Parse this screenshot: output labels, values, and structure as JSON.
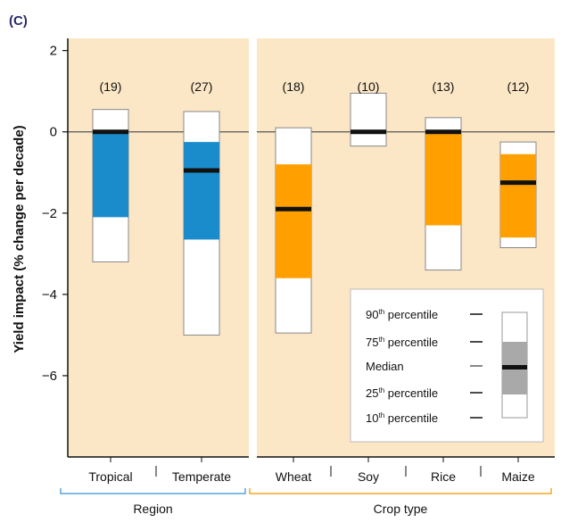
{
  "chart_data": {
    "type": "box",
    "panel_label": "(C)",
    "ylabel": "Yield impact (% change per decade)",
    "ylim": [
      -8,
      2.3
    ],
    "yticks": [
      2,
      0,
      -2,
      -4,
      -6
    ],
    "ytick_labels": [
      "2",
      "0",
      "−2",
      "−4",
      "−6"
    ],
    "zero_line": true,
    "groups": [
      {
        "name": "Region",
        "color": "#5aa5d8",
        "categories": [
          {
            "label": "Tropical",
            "count": "(19)",
            "p10": -3.2,
            "p25": -2.1,
            "median": 0.0,
            "p75": 0.0,
            "p90": 0.55
          },
          {
            "label": "Temperate",
            "count": "(27)",
            "p10": -5.0,
            "p25": -2.65,
            "median": -0.95,
            "p75": -0.25,
            "p90": 0.5
          }
        ]
      },
      {
        "name": "Crop type",
        "color": "#f5a623",
        "categories": [
          {
            "label": "Wheat",
            "count": "(18)",
            "p10": -4.95,
            "p25": -3.6,
            "median": -1.9,
            "p75": -0.8,
            "p90": 0.1
          },
          {
            "label": "Soy",
            "count": "(10)",
            "p10": -0.35,
            "p25": -0.05,
            "median": 0.0,
            "p75": 0.05,
            "p90": 0.95
          },
          {
            "label": "Rice",
            "count": "(13)",
            "p10": -3.4,
            "p25": -2.3,
            "median": 0.0,
            "p75": 0.0,
            "p90": 0.35
          },
          {
            "label": "Maize",
            "count": "(12)",
            "p10": -2.85,
            "p25": -2.6,
            "median": -1.25,
            "p75": -0.55,
            "p90": -0.25
          }
        ]
      }
    ],
    "colors": {
      "panel_bg": "#fbe6c6",
      "region_box": "#1a8ccc",
      "crop_box": "#ffa000",
      "whisker_box": "#ffffff",
      "median": "#111111",
      "legend_box": "#a9a9a9"
    },
    "legend": {
      "position": "bottom-right",
      "entries": [
        {
          "base": "90",
          "sup": "th",
          "rest": "percentile"
        },
        {
          "base": "75",
          "sup": "th",
          "rest": "percentile"
        },
        {
          "base": "Median",
          "sup": "",
          "rest": ""
        },
        {
          "base": "25",
          "sup": "th",
          "rest": "percentile"
        },
        {
          "base": "10",
          "sup": "th",
          "rest": "percentile"
        }
      ]
    }
  }
}
